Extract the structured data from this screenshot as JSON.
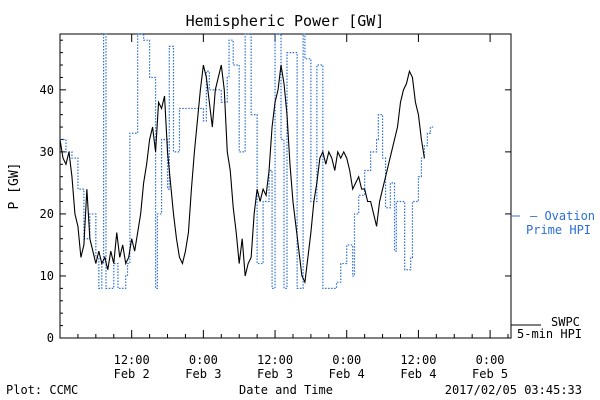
{
  "chart_data": {
    "type": "line",
    "title": "Hemispheric Power [GW]",
    "xlabel": "Date and Time",
    "ylabel": "P [GW]",
    "xlim_hours": [
      0,
      75.5
    ],
    "ylim": [
      0,
      49
    ],
    "yticks": [
      0,
      10,
      20,
      30,
      40
    ],
    "xticks": [
      {
        "hour": 12,
        "time": "12:00",
        "date": "Feb 2"
      },
      {
        "hour": 24,
        "time": "0:00",
        "date": "Feb 3"
      },
      {
        "hour": 36,
        "time": "12:00",
        "date": "Feb 3"
      },
      {
        "hour": 48,
        "time": "0:00",
        "date": "Feb 4"
      },
      {
        "hour": 60,
        "time": "12:00",
        "date": "Feb 4"
      },
      {
        "hour": 72,
        "time": "0:00",
        "date": "Feb 5"
      }
    ],
    "series": [
      {
        "name": "Ovation Prime HPI",
        "color": "#2b6fd6",
        "style": "dotted-step",
        "points": [
          [
            0,
            32
          ],
          [
            1,
            30
          ],
          [
            2,
            29
          ],
          [
            3,
            24
          ],
          [
            4,
            16
          ],
          [
            5,
            20
          ],
          [
            6,
            13
          ],
          [
            6.5,
            8
          ],
          [
            7,
            12
          ],
          [
            7.3,
            49
          ],
          [
            7.7,
            8
          ],
          [
            9,
            12
          ],
          [
            9.7,
            8
          ],
          [
            10.7,
            8
          ],
          [
            11,
            10
          ],
          [
            11.3,
            12
          ],
          [
            11.7,
            33
          ],
          [
            12.3,
            33
          ],
          [
            13,
            49
          ],
          [
            14,
            48
          ],
          [
            15,
            42
          ],
          [
            16,
            8
          ],
          [
            16.3,
            20
          ],
          [
            17,
            32
          ],
          [
            18,
            24
          ],
          [
            18.3,
            47
          ],
          [
            19,
            30
          ],
          [
            20,
            37
          ],
          [
            24,
            35
          ],
          [
            24.5,
            43
          ],
          [
            25,
            40
          ],
          [
            27,
            38
          ],
          [
            28,
            42
          ],
          [
            28.3,
            48
          ],
          [
            29,
            44
          ],
          [
            30,
            30
          ],
          [
            31,
            49
          ],
          [
            32,
            36
          ],
          [
            33,
            12
          ],
          [
            34,
            22
          ],
          [
            35,
            27
          ],
          [
            35.5,
            8
          ],
          [
            36,
            49
          ],
          [
            37,
            32
          ],
          [
            37.5,
            8
          ],
          [
            38,
            46
          ],
          [
            39,
            46
          ],
          [
            39.7,
            8
          ],
          [
            40.3,
            8
          ],
          [
            40.7,
            49
          ],
          [
            41,
            45
          ],
          [
            41.3,
            45
          ],
          [
            42,
            22
          ],
          [
            43,
            44
          ],
          [
            44,
            8
          ],
          [
            46,
            8
          ],
          [
            46.3,
            9
          ],
          [
            47,
            12
          ],
          [
            48,
            15
          ],
          [
            49,
            10
          ],
          [
            49.3,
            20
          ],
          [
            50,
            23
          ],
          [
            51,
            27
          ],
          [
            52,
            30
          ],
          [
            53,
            32
          ],
          [
            53.3,
            36
          ],
          [
            54,
            29
          ],
          [
            54.5,
            21
          ],
          [
            55,
            21
          ],
          [
            55.3,
            25
          ],
          [
            56,
            14
          ],
          [
            56.3,
            22
          ],
          [
            57,
            22
          ],
          [
            57.7,
            11
          ],
          [
            58,
            11
          ],
          [
            58.7,
            13
          ],
          [
            59,
            22
          ],
          [
            60,
            26
          ],
          [
            60.5,
            29
          ],
          [
            61,
            31
          ],
          [
            61.5,
            33
          ],
          [
            62,
            34
          ],
          [
            62.7,
            34
          ]
        ]
      },
      {
        "name": "SWPC 5-min HPI",
        "color": "#000000",
        "style": "solid",
        "points": [
          [
            0,
            32
          ],
          [
            0.5,
            29
          ],
          [
            1,
            28
          ],
          [
            1.5,
            30
          ],
          [
            2,
            26
          ],
          [
            2.5,
            20
          ],
          [
            3,
            18
          ],
          [
            3.5,
            13
          ],
          [
            4,
            15
          ],
          [
            4.5,
            24
          ],
          [
            5,
            16
          ],
          [
            5.5,
            14
          ],
          [
            6,
            12
          ],
          [
            6.5,
            14
          ],
          [
            7,
            12
          ],
          [
            7.5,
            13
          ],
          [
            8,
            11
          ],
          [
            8.5,
            14
          ],
          [
            9,
            12
          ],
          [
            9.5,
            17
          ],
          [
            10,
            13
          ],
          [
            10.5,
            15
          ],
          [
            11,
            12
          ],
          [
            11.5,
            13
          ],
          [
            12,
            16
          ],
          [
            12.5,
            14
          ],
          [
            13,
            17
          ],
          [
            13.5,
            20
          ],
          [
            14,
            25
          ],
          [
            14.5,
            28
          ],
          [
            15,
            32
          ],
          [
            15.5,
            34
          ],
          [
            16,
            30
          ],
          [
            16.5,
            38
          ],
          [
            17,
            37
          ],
          [
            17.5,
            39
          ],
          [
            18,
            30
          ],
          [
            18.5,
            25
          ],
          [
            19,
            20
          ],
          [
            19.5,
            16
          ],
          [
            20,
            13
          ],
          [
            20.5,
            12
          ],
          [
            21,
            14
          ],
          [
            21.5,
            17
          ],
          [
            22,
            24
          ],
          [
            22.5,
            30
          ],
          [
            23,
            35
          ],
          [
            23.5,
            40
          ],
          [
            24,
            44
          ],
          [
            24.5,
            42
          ],
          [
            25,
            38
          ],
          [
            25.5,
            34
          ],
          [
            26,
            40
          ],
          [
            26.5,
            42
          ],
          [
            27,
            44
          ],
          [
            27.5,
            40
          ],
          [
            28,
            30
          ],
          [
            28.5,
            27
          ],
          [
            29,
            21
          ],
          [
            29.5,
            17
          ],
          [
            30,
            12
          ],
          [
            30.5,
            16
          ],
          [
            31,
            10
          ],
          [
            31.5,
            12
          ],
          [
            32,
            13
          ],
          [
            32.5,
            20
          ],
          [
            33,
            24
          ],
          [
            33.5,
            22
          ],
          [
            34,
            24
          ],
          [
            34.5,
            23
          ],
          [
            35,
            27
          ],
          [
            35.5,
            34
          ],
          [
            36,
            38
          ],
          [
            36.5,
            40
          ],
          [
            37,
            44
          ],
          [
            37.5,
            41
          ],
          [
            38,
            36
          ],
          [
            38.5,
            28
          ],
          [
            39,
            22
          ],
          [
            39.5,
            18
          ],
          [
            40,
            14
          ],
          [
            40.5,
            10
          ],
          [
            41,
            9
          ],
          [
            41.5,
            13
          ],
          [
            42,
            17
          ],
          [
            42.5,
            22
          ],
          [
            43,
            25
          ],
          [
            43.5,
            29
          ],
          [
            44,
            30
          ],
          [
            44.5,
            28
          ],
          [
            45,
            30
          ],
          [
            45.5,
            29
          ],
          [
            46,
            27
          ],
          [
            46.5,
            30
          ],
          [
            47,
            29
          ],
          [
            47.5,
            30
          ],
          [
            48,
            29
          ],
          [
            48.5,
            27
          ],
          [
            49,
            24
          ],
          [
            49.5,
            25
          ],
          [
            50,
            26
          ],
          [
            50.5,
            24
          ],
          [
            51,
            24
          ],
          [
            51.5,
            22
          ],
          [
            52,
            22
          ],
          [
            52.5,
            20
          ],
          [
            53,
            18
          ],
          [
            53.5,
            22
          ],
          [
            54,
            24
          ],
          [
            54.5,
            26
          ],
          [
            55,
            28
          ],
          [
            55.5,
            30
          ],
          [
            56,
            32
          ],
          [
            56.5,
            34
          ],
          [
            57,
            38
          ],
          [
            57.5,
            40
          ],
          [
            58,
            41
          ],
          [
            58.5,
            43
          ],
          [
            59,
            42
          ],
          [
            59.5,
            38
          ],
          [
            60,
            36
          ],
          [
            60.5,
            32
          ],
          [
            61,
            29
          ]
        ]
      }
    ]
  },
  "texts": {
    "plot_credit": "Plot: CCMC",
    "timestamp": "2017/02/05 03:45:33",
    "legend_ovation_line1": "— Ovation",
    "legend_ovation_line2": "Prime HPI",
    "legend_swpc_line1": "SWPC",
    "legend_swpc_line2": "5-min HPI"
  }
}
